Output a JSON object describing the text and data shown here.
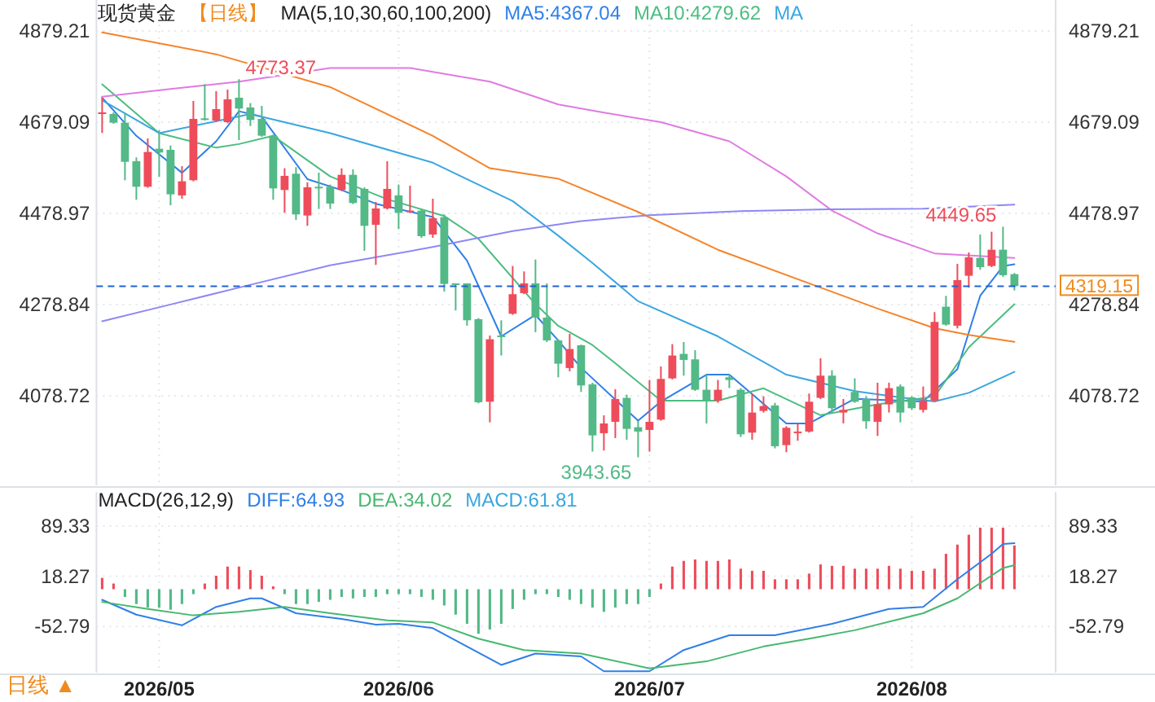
{
  "chart_data": [
    {
      "type": "candlestick",
      "title": "现货黄金",
      "subtitle": "【日线】",
      "legend_title": "MA(5,10,30,60,100,200)",
      "legend": "top",
      "grid": true,
      "tick_labels": "y",
      "categories": [
        null,
        null,
        null,
        null,
        null,
        "2026/05",
        null,
        null,
        null,
        null,
        null,
        null,
        null,
        null,
        null,
        null,
        null,
        null,
        null,
        null,
        null,
        null,
        null,
        null,
        null,
        null,
        "2026/06",
        null,
        null,
        null,
        null,
        null,
        null,
        null,
        null,
        null,
        null,
        null,
        null,
        null,
        null,
        null,
        null,
        null,
        null,
        null,
        null,
        null,
        "2026/07",
        null,
        null,
        null,
        null,
        null,
        null,
        null,
        null,
        null,
        null,
        null,
        null,
        null,
        null,
        null,
        null,
        null,
        null,
        null,
        null,
        null,
        null,
        "2026/08",
        null,
        null,
        null,
        null,
        null,
        null,
        null,
        null,
        null
      ],
      "ohlc": [
        [
          4697.0,
          4732.7,
          4655.3,
          4700.5
        ],
        [
          4697.0,
          4700.5,
          4675.5,
          4677.9
        ],
        [
          4677.9,
          4699.3,
          4551.6,
          4592.1
        ],
        [
          4593.3,
          4601.7,
          4508.8,
          4537.3
        ],
        [
          4537.3,
          4643.4,
          4535.0,
          4613.6
        ],
        [
          4620.7,
          4661.2,
          4558.8,
          4612.4
        ],
        [
          4618.3,
          4627.9,
          4496.8,
          4520.7
        ],
        [
          4518.3,
          4582.6,
          4511.1,
          4549.2
        ],
        [
          4551.6,
          4725.5,
          4549.2,
          4686.2
        ],
        [
          4687.4,
          4762.5,
          4682.6,
          4685.0
        ],
        [
          4682.6,
          4747.0,
          4679.1,
          4707.7
        ],
        [
          4679.1,
          4750.6,
          4676.7,
          4729.1
        ],
        [
          4732.7,
          4773.37,
          4639.8,
          4708.9
        ],
        [
          4711.3,
          4720.8,
          4670.7,
          4683.8
        ],
        [
          4686.2,
          4714.8,
          4646.9,
          4649.3
        ],
        [
          4649.3,
          4651.7,
          4508.8,
          4533.7
        ],
        [
          4530.2,
          4577.8,
          4480.1,
          4561.2
        ],
        [
          4565.9,
          4580.2,
          4464.7,
          4476.6
        ],
        [
          4474.2,
          4546.9,
          4451.6,
          4536.1
        ],
        [
          4537.3,
          4568.3,
          4488.5,
          4535.0
        ],
        [
          4537.3,
          4542.1,
          4488.5,
          4500.4
        ],
        [
          4530.2,
          4577.8,
          4527.8,
          4563.5
        ],
        [
          4563.5,
          4575.4,
          4499.2,
          4501.6
        ],
        [
          4532.6,
          4536.1,
          4396.8,
          4451.6
        ],
        [
          4453.9,
          4504.0,
          4365.8,
          4489.7
        ],
        [
          4489.7,
          4593.3,
          4487.3,
          4532.6
        ],
        [
          4518.3,
          4542.1,
          4444.4,
          4480.1
        ],
        [
          4481.3,
          4539.7,
          4480.1,
          4484.9
        ],
        [
          4484.9,
          4488.5,
          4425.3,
          4428.9
        ],
        [
          4432.5,
          4511.1,
          4425.3,
          4468.2
        ],
        [
          4470.6,
          4476.6,
          4307.4,
          4324.1
        ],
        [
          4325.3,
          4325.3,
          4265.7,
          4322.9
        ],
        [
          4325.3,
          4325.3,
          4232.4,
          4244.3
        ],
        [
          4246.7,
          4249.1,
          4062.0,
          4064.4
        ],
        [
          4065.6,
          4210.9,
          4020.3,
          4202.6
        ],
        [
          4210.9,
          4244.3,
          4166.9,
          4207.4
        ],
        [
          4258.6,
          4363.4,
          4256.2,
          4301.5
        ],
        [
          4303.9,
          4351.5,
          4301.5,
          4325.3
        ],
        [
          4325.3,
          4377.7,
          4218.1,
          4250.2
        ],
        [
          4250.2,
          4325.3,
          4196.6,
          4200.2
        ],
        [
          4200.2,
          4202.6,
          4119.2,
          4149.0
        ],
        [
          4139.5,
          4214.5,
          4132.3,
          4181.2
        ],
        [
          4189.5,
          4190.7,
          4087.0,
          4101.3
        ],
        [
          4103.7,
          4107.3,
          3956.0,
          3991.7
        ],
        [
          3996.5,
          4035.8,
          3958.4,
          4017.9
        ],
        [
          4021.5,
          4093.0,
          3985.8,
          4071.6
        ],
        [
          4074.0,
          4081.1,
          3982.2,
          4006.0
        ],
        [
          4009.6,
          4023.9,
          3943.65,
          4000.1
        ],
        [
          4003.7,
          4113.3,
          3956.0,
          4021.5
        ],
        [
          4026.3,
          4143.0,
          4023.9,
          4115.6
        ],
        [
          4116.8,
          4191.9,
          4114.5,
          4166.9
        ],
        [
          4170.5,
          4196.6,
          4122.8,
          4157.3
        ],
        [
          4158.5,
          4178.8,
          4089.4,
          4091.8
        ],
        [
          4091.8,
          4125.2,
          4017.9,
          4069.2
        ],
        [
          4068.0,
          4113.3,
          4063.2,
          4091.8
        ],
        [
          4119.2,
          4125.2,
          4095.4,
          4113.3
        ],
        [
          4091.8,
          4095.4,
          3988.2,
          3994.1
        ],
        [
          3997.7,
          4083.5,
          3982.2,
          4041.8
        ],
        [
          4045.4,
          4077.5,
          4041.8,
          4056.1
        ],
        [
          4057.3,
          4063.2,
          3963.2,
          3967.9
        ],
        [
          3970.3,
          4012.0,
          3954.8,
          4008.4
        ],
        [
          3997.7,
          4018.0,
          3979.9,
          4000.1
        ],
        [
          4000.1,
          4083.5,
          3997.7,
          4065.6
        ],
        [
          4074.0,
          4160.9,
          4071.6,
          4122.8
        ],
        [
          4122.8,
          4134.7,
          4039.4,
          4051.3
        ],
        [
          4041.8,
          4071.6,
          4018.0,
          4047.7
        ],
        [
          4087.0,
          4116.8,
          4063.2,
          4065.6
        ],
        [
          4071.6,
          4077.5,
          4006.0,
          4022.7
        ],
        [
          4021.5,
          4107.3,
          3990.6,
          4059.7
        ],
        [
          4059.7,
          4107.3,
          4041.8,
          4095.4
        ],
        [
          4099.0,
          4103.7,
          4020.3,
          4041.8
        ],
        [
          4075.2,
          4077.5,
          4047.7,
          4051.3
        ],
        [
          4047.7,
          4099.0,
          4041.8,
          4068.0
        ],
        [
          4068.0,
          4262.2,
          4065.6,
          4240.7
        ],
        [
          4274.1,
          4297.9,
          4232.4,
          4234.8
        ],
        [
          4232.4,
          4368.2,
          4226.4,
          4332.4
        ],
        [
          4342.0,
          4393.2,
          4315.8,
          4382.5
        ],
        [
          4381.3,
          4432.5,
          4355.1,
          4361.0
        ],
        [
          4363.4,
          4438.5,
          4361.0,
          4399.1
        ],
        [
          4399.1,
          4449.65,
          4339.6,
          4343.2
        ],
        [
          4345.5,
          4347.9,
          4309.8,
          4319.15
        ]
      ],
      "colors": [
        "#ee4c5a",
        "#52b987",
        "#52b987",
        "#52b987",
        "#ee4c5a",
        "#52b987",
        "#52b987",
        "#ee4c5a",
        "#ee4c5a",
        "#52b987",
        "#ee4c5a",
        "#ee4c5a",
        "#52b987",
        "#52b987",
        "#52b987",
        "#52b987",
        "#ee4c5a",
        "#52b987",
        "#ee4c5a",
        "#52b987",
        "#52b987",
        "#ee4c5a",
        "#52b987",
        "#52b987",
        "#ee4c5a",
        "#ee4c5a",
        "#52b987",
        "#ee4c5a",
        "#52b987",
        "#ee4c5a",
        "#52b987",
        "#52b987",
        "#52b987",
        "#52b987",
        "#ee4c5a",
        "#52b987",
        "#ee4c5a",
        "#ee4c5a",
        "#52b987",
        "#52b987",
        "#52b987",
        "#ee4c5a",
        "#52b987",
        "#52b987",
        "#ee4c5a",
        "#ee4c5a",
        "#52b987",
        "#52b987",
        "#ee4c5a",
        "#ee4c5a",
        "#ee4c5a",
        "#52b987",
        "#52b987",
        "#52b987",
        "#ee4c5a",
        "#52b987",
        "#52b987",
        "#ee4c5a",
        "#ee4c5a",
        "#52b987",
        "#ee4c5a",
        "#ee4c5a",
        "#ee4c5a",
        "#ee4c5a",
        "#52b987",
        "#ee4c5a",
        "#52b987",
        "#52b987",
        "#ee4c5a",
        "#ee4c5a",
        "#52b987",
        "#52b987",
        "#ee4c5a",
        "#ee4c5a",
        "#52b987",
        "#ee4c5a",
        "#ee4c5a",
        "#52b987",
        "#ee4c5a",
        "#52b987",
        "#52b987"
      ],
      "series": [
        {
          "type": "line",
          "name": "MA5:4367.04",
          "color": "#2f7fe8",
          "values": [
            4733,
            null,
            null,
            4649,
            null,
            null,
            null,
            4568,
            null,
            null,
            4637,
            null,
            4703,
            null,
            4691,
            null,
            null,
            null,
            4554,
            null,
            null,
            4530,
            null,
            null,
            4500,
            null,
            null,
            null,
            null,
            4471,
            null,
            null,
            4375,
            null,
            null,
            4209,
            null,
            null,
            4256,
            null,
            4200,
            null,
            4140,
            null,
            null,
            null,
            null,
            4024,
            null,
            4066,
            null,
            null,
            null,
            4125,
            null,
            4125,
            null,
            null,
            null,
            null,
            4018,
            null,
            4018,
            null,
            null,
            null,
            4072,
            null,
            null,
            null,
            null,
            null,
            4066,
            null,
            null,
            4137,
            null,
            4298,
            null,
            4363,
            4367.04
          ]
        },
        {
          "type": "line",
          "name": "MA10:4279.62",
          "color": "#4cbd80",
          "values": [
            4762,
            null,
            null,
            null,
            null,
            4655,
            null,
            null,
            null,
            null,
            4623,
            null,
            4631,
            null,
            null,
            4649,
            null,
            null,
            null,
            null,
            4560,
            null,
            null,
            null,
            null,
            4510,
            null,
            null,
            null,
            null,
            4473,
            null,
            null,
            4423,
            null,
            null,
            null,
            null,
            4280,
            null,
            4232,
            null,
            null,
            4190,
            null,
            4150,
            null,
            null,
            null,
            4068,
            null,
            null,
            null,
            null,
            4068,
            null,
            null,
            null,
            4095,
            null,
            null,
            null,
            null,
            4036,
            null,
            null,
            null,
            null,
            4060,
            null,
            null,
            null,
            null,
            4077,
            null,
            null,
            4185,
            null,
            null,
            null,
            4279.62
          ]
        },
        {
          "type": "line",
          "name": "MA",
          "color": "#3aa6e0",
          "values": [
            4727,
            null,
            null,
            null,
            null,
            4655,
            null,
            null,
            null,
            null,
            null,
            null,
            null,
            4697,
            null,
            null,
            null,
            null,
            null,
            null,
            4655,
            null,
            null,
            null,
            null,
            null,
            null,
            null,
            null,
            4590,
            null,
            null,
            null,
            null,
            null,
            null,
            4506,
            null,
            null,
            null,
            4430,
            null,
            null,
            4370,
            null,
            null,
            null,
            4286,
            null,
            null,
            null,
            null,
            null,
            null,
            4209,
            null,
            null,
            null,
            null,
            null,
            4125,
            null,
            null,
            null,
            null,
            null,
            4089,
            null,
            null,
            null,
            4075,
            null,
            null,
            4066,
            null,
            null,
            4085,
            null,
            null,
            null,
            4131
          ]
        },
        {
          "type": "line",
          "color": "#f5842a",
          "values": [
            4876,
            null,
            null,
            null,
            null,
            null,
            null,
            null,
            null,
            null,
            4828,
            null,
            null,
            null,
            null,
            null,
            null,
            null,
            null,
            null,
            4756,
            null,
            null,
            null,
            null,
            null,
            null,
            null,
            null,
            4649,
            null,
            null,
            null,
            null,
            4578,
            null,
            null,
            null,
            null,
            null,
            4555,
            null,
            null,
            null,
            null,
            null,
            null,
            4482,
            null,
            null,
            null,
            null,
            null,
            null,
            4399,
            null,
            null,
            null,
            null,
            null,
            null,
            null,
            null,
            4316,
            null,
            null,
            null,
            null,
            4270,
            null,
            null,
            null,
            null,
            4227,
            null,
            null,
            4212,
            null,
            null,
            null,
            4197
          ]
        },
        {
          "type": "line",
          "color": "#e07be0",
          "values": [
            4735,
            null,
            null,
            null,
            null,
            null,
            4752,
            null,
            null,
            null,
            null,
            null,
            4768,
            null,
            null,
            null,
            null,
            null,
            null,
            null,
            4798,
            null,
            null,
            null,
            null,
            null,
            null,
            4798,
            null,
            null,
            null,
            null,
            null,
            null,
            4768,
            null,
            null,
            null,
            null,
            null,
            4718,
            null,
            null,
            null,
            4700,
            null,
            null,
            null,
            null,
            4679,
            null,
            null,
            null,
            null,
            null,
            4637,
            null,
            null,
            null,
            null,
            4560,
            null,
            null,
            null,
            4485,
            null,
            null,
            null,
            4435,
            null,
            null,
            null,
            null,
            4391,
            null,
            null,
            null,
            null,
            null,
            null,
            4381
          ]
        },
        {
          "type": "line",
          "color": "#8f87f5",
          "values": [
            4242,
            null,
            null,
            null,
            null,
            null,
            4279,
            null,
            null,
            null,
            null,
            null,
            4316,
            null,
            null,
            null,
            null,
            null,
            null,
            null,
            4365,
            null,
            null,
            null,
            null,
            null,
            null,
            null,
            null,
            4405,
            null,
            null,
            null,
            null,
            null,
            null,
            4440,
            null,
            null,
            null,
            null,
            null,
            4462,
            null,
            null,
            null,
            null,
            null,
            4475,
            null,
            null,
            null,
            null,
            null,
            null,
            null,
            4484,
            null,
            null,
            null,
            null,
            null,
            null,
            null,
            4488,
            null,
            null,
            null,
            null,
            null,
            null,
            null,
            4489,
            null,
            null,
            null,
            null,
            null,
            null,
            null,
            4498
          ]
        }
      ],
      "ylim": [
        3882,
        4893.5
      ],
      "yticks": [
        4879.21,
        4679.09,
        4478.97,
        4278.84,
        4078.72
      ],
      "y2lim": [
        3882,
        4893.5
      ],
      "y2ticks": [
        4879.21,
        4679.09,
        4478.97,
        4278.84,
        4078.72
      ],
      "ref_lines": [
        {
          "axis": "y2",
          "value": 4319.15,
          "label": "4319.15",
          "color": "#1f63d6",
          "line_style": "dashed"
        }
      ],
      "annotations": [
        "4773.37",
        "4449.65",
        {
          "text": "3943.65",
          "y": 3943.65
        }
      ]
    },
    {
      "type": "bar",
      "title": "MACD(26,12,9)",
      "legend": "top left",
      "grid": true,
      "categories": [
        null,
        null,
        null,
        null,
        null,
        "2026/05",
        null,
        null,
        null,
        null,
        null,
        null,
        null,
        null,
        null,
        null,
        null,
        null,
        null,
        null,
        null,
        null,
        null,
        null,
        null,
        null,
        "2026/06",
        null,
        null,
        null,
        null,
        null,
        null,
        null,
        null,
        null,
        null,
        null,
        null,
        null,
        null,
        null,
        null,
        null,
        null,
        null,
        null,
        null,
        "2026/07",
        null,
        null,
        null,
        null,
        null,
        null,
        null,
        null,
        null,
        null,
        null,
        null,
        null,
        null,
        null,
        null,
        null,
        null,
        null,
        null,
        null,
        null,
        "2026/08",
        null,
        null,
        null,
        null,
        null,
        null,
        null,
        null,
        null
      ],
      "series": [
        {
          "type": "bar",
          "values": [
            16,
            8,
            -11,
            -21,
            -26,
            -26,
            -29,
            -21,
            -7,
            8,
            19,
            32,
            32,
            27,
            19,
            4,
            -7,
            -21,
            -21,
            -18,
            -15,
            -11,
            -13,
            -11,
            -11,
            -7,
            -7,
            -7,
            -11,
            -15,
            -23,
            -36,
            -49,
            -63,
            -57,
            -49,
            -28,
            -15,
            -7,
            -7,
            -11,
            -15,
            -21,
            -26,
            -32,
            -26,
            -21,
            -21,
            -11,
            8,
            32,
            40,
            42,
            40,
            40,
            42,
            29,
            26,
            26,
            14,
            14,
            14,
            22,
            35,
            33,
            33,
            29,
            29,
            29,
            33,
            29,
            26,
            26,
            29,
            50,
            63,
            77,
            87,
            87,
            87,
            61.81
          ],
          "colors": [
            "#ee4c5a",
            "#ee4c5a",
            "#52b987",
            "#52b987",
            "#52b987",
            "#52b987",
            "#52b987",
            "#52b987",
            "#52b987",
            "#ee4c5a",
            "#ee4c5a",
            "#ee4c5a",
            "#ee4c5a",
            "#ee4c5a",
            "#ee4c5a",
            "#ee4c5a",
            "#52b987",
            "#52b987",
            "#52b987",
            "#52b987",
            "#52b987",
            "#52b987",
            "#52b987",
            "#52b987",
            "#52b987",
            "#52b987",
            "#52b987",
            "#52b987",
            "#52b987",
            "#52b987",
            "#52b987",
            "#52b987",
            "#52b987",
            "#52b987",
            "#52b987",
            "#52b987",
            "#52b987",
            "#52b987",
            "#52b987",
            "#52b987",
            "#52b987",
            "#52b987",
            "#52b987",
            "#52b987",
            "#52b987",
            "#52b987",
            "#52b987",
            "#52b987",
            "#52b987",
            "#ee4c5a",
            "#ee4c5a",
            "#ee4c5a",
            "#ee4c5a",
            "#ee4c5a",
            "#ee4c5a",
            "#ee4c5a",
            "#ee4c5a",
            "#ee4c5a",
            "#ee4c5a",
            "#ee4c5a",
            "#ee4c5a",
            "#ee4c5a",
            "#ee4c5a",
            "#ee4c5a",
            "#ee4c5a",
            "#ee4c5a",
            "#ee4c5a",
            "#ee4c5a",
            "#ee4c5a",
            "#ee4c5a",
            "#ee4c5a",
            "#ee4c5a",
            "#ee4c5a",
            "#ee4c5a",
            "#ee4c5a",
            "#ee4c5a",
            "#ee4c5a",
            "#ee4c5a",
            "#ee4c5a",
            "#ee4c5a",
            "#ee4c5a"
          ]
        },
        {
          "type": "line",
          "name": "DIFF:64.93",
          "color": "#2f7fe8",
          "values": [
            -15,
            null,
            null,
            -36,
            null,
            null,
            null,
            -51,
            null,
            null,
            -25,
            null,
            null,
            -13,
            -13,
            null,
            null,
            -34,
            null,
            null,
            null,
            -42,
            null,
            null,
            -50,
            null,
            -49,
            null,
            null,
            -55,
            null,
            null,
            -81,
            null,
            null,
            -107,
            null,
            null,
            -91,
            null,
            null,
            null,
            -95,
            null,
            -116,
            null,
            null,
            null,
            -116,
            null,
            null,
            -86,
            null,
            null,
            null,
            -65,
            null,
            null,
            null,
            -65,
            null,
            null,
            null,
            null,
            -49,
            null,
            null,
            null,
            null,
            -28,
            null,
            null,
            -25,
            null,
            null,
            14,
            null,
            null,
            50,
            64,
            64.93
          ]
        },
        {
          "type": "line",
          "name": "DEA:34.02",
          "color": "#47b86f",
          "values": [
            -18,
            null,
            null,
            null,
            -28,
            null,
            null,
            null,
            -37,
            null,
            null,
            null,
            -32,
            null,
            null,
            null,
            -25,
            null,
            null,
            null,
            -34,
            null,
            null,
            null,
            null,
            -44,
            null,
            null,
            null,
            -47,
            null,
            null,
            null,
            -70,
            null,
            null,
            null,
            -86,
            null,
            null,
            null,
            null,
            -91,
            null,
            null,
            null,
            null,
            null,
            -112,
            null,
            null,
            null,
            null,
            -102,
            null,
            null,
            null,
            null,
            -81,
            null,
            null,
            null,
            -70,
            null,
            null,
            null,
            -58,
            null,
            null,
            null,
            null,
            null,
            -34,
            null,
            null,
            -13,
            null,
            null,
            null,
            30,
            34.02
          ]
        }
      ],
      "ylim": [
        -118,
        103
      ],
      "yticks": [
        89.33,
        18.27,
        -52.79
      ],
      "y2lim": [
        -118,
        103
      ],
      "y2ticks": [
        89.33,
        18.27,
        -52.79
      ],
      "annotations": [
        "MACD:61.81",
        "日线 ▲"
      ]
    }
  ]
}
